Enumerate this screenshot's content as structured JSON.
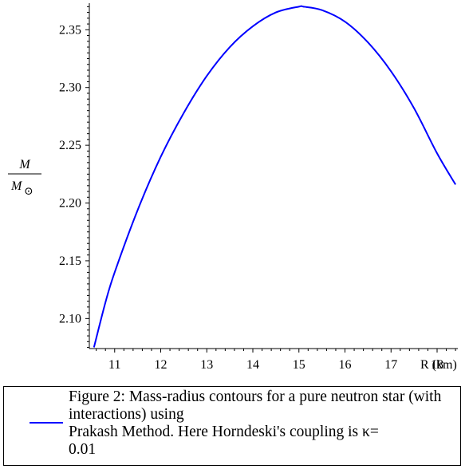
{
  "chart_data": {
    "type": "line",
    "title": "",
    "xlabel": "R (km)",
    "ylabel_numerator": "M",
    "ylabel_denominator": "M",
    "ylabel_sun_symbol": "⊙",
    "xlim": [
      10.45,
      18.45
    ],
    "ylim": [
      2.074,
      2.373
    ],
    "x_ticks": [
      11,
      12,
      13,
      14,
      15,
      16,
      17,
      18
    ],
    "x_tick_labels": [
      "11",
      "12",
      "13",
      "14",
      "15",
      "16",
      "17",
      "18"
    ],
    "y_ticks": [
      2.1,
      2.15,
      2.2,
      2.25,
      2.3,
      2.35
    ],
    "y_tick_labels": [
      "2.10",
      "2.15",
      "2.20",
      "2.25",
      "2.30",
      "2.35"
    ],
    "grid": false,
    "legend_placement": "bottom",
    "series": [
      {
        "name": "Figure 2: Mass-radius contours for a pure neutron star (with interactions) using\nPrakash Method. Here Horndeski's coupling is κ=\n0.01",
        "color": "#0000ff",
        "x": [
          10.55,
          10.8,
          11.0,
          11.5,
          12.0,
          12.5,
          13.0,
          13.5,
          14.0,
          14.5,
          15.0,
          15.1,
          15.5,
          16.0,
          16.5,
          17.0,
          17.5,
          18.0,
          18.4
        ],
        "y": [
          2.075,
          2.114,
          2.14,
          2.194,
          2.24,
          2.278,
          2.31,
          2.335,
          2.353,
          2.365,
          2.37,
          2.37,
          2.367,
          2.357,
          2.339,
          2.314,
          2.282,
          2.243,
          2.216
        ]
      }
    ]
  }
}
